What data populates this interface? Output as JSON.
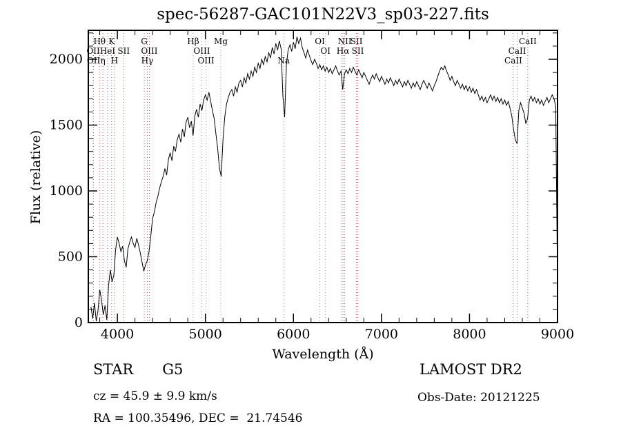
{
  "title": "spec-56287-GAC101N22V3_sp03-227.fits",
  "chart_data": {
    "type": "line",
    "title": "spec-56287-GAC101N22V3_sp03-227.fits",
    "xlabel": "Wavelength (Å)",
    "ylabel": "Flux (relative)",
    "xlim": [
      3670,
      9000
    ],
    "ylim": [
      0,
      2220
    ],
    "x_ticks": [
      4000,
      5000,
      6000,
      7000,
      8000,
      9000
    ],
    "y_ticks": [
      0,
      500,
      1000,
      1500,
      2000
    ],
    "x_minor_step": 200,
    "y_minor_step": 100,
    "grid": false,
    "legend": "none",
    "line_color": "#000000",
    "series": [
      {
        "name": "spectrum",
        "x_start": 3700,
        "x_step": 20,
        "values": [
          120,
          30,
          150,
          10,
          90,
          250,
          170,
          60,
          130,
          20,
          280,
          400,
          310,
          360,
          550,
          650,
          600,
          540,
          580,
          470,
          420,
          560,
          610,
          650,
          600,
          570,
          640,
          590,
          530,
          460,
          390,
          440,
          470,
          540,
          660,
          790,
          840,
          910,
          960,
          1020,
          1070,
          1110,
          1170,
          1120,
          1240,
          1290,
          1230,
          1340,
          1300,
          1390,
          1430,
          1370,
          1470,
          1410,
          1520,
          1560,
          1480,
          1530,
          1420,
          1570,
          1620,
          1560,
          1660,
          1610,
          1690,
          1730,
          1690,
          1750,
          1680,
          1610,
          1550,
          1430,
          1320,
          1170,
          1110,
          1390,
          1560,
          1660,
          1710,
          1750,
          1770,
          1720,
          1790,
          1750,
          1820,
          1840,
          1790,
          1860,
          1820,
          1890,
          1850,
          1910,
          1870,
          1940,
          1900,
          1970,
          1930,
          2000,
          1960,
          2020,
          1980,
          2050,
          2010,
          2090,
          2040,
          2120,
          2070,
          2140,
          2080,
          1720,
          1560,
          1960,
          2070,
          2110,
          2060,
          2130,
          2080,
          2170,
          2120,
          2160,
          2090,
          2050,
          2010,
          2070,
          2030,
          1990,
          1960,
          2000,
          1970,
          1930,
          1960,
          1920,
          1950,
          1910,
          1940,
          1900,
          1930,
          1890,
          1920,
          1950,
          1910,
          1880,
          1910,
          1770,
          1890,
          1920,
          1890,
          1930,
          1900,
          1940,
          1910,
          1880,
          1920,
          1890,
          1860,
          1900,
          1870,
          1840,
          1810,
          1850,
          1880,
          1850,
          1890,
          1860,
          1830,
          1870,
          1840,
          1810,
          1850,
          1820,
          1860,
          1830,
          1800,
          1840,
          1810,
          1850,
          1820,
          1790,
          1830,
          1800,
          1840,
          1810,
          1780,
          1820,
          1790,
          1830,
          1800,
          1770,
          1810,
          1840,
          1810,
          1780,
          1820,
          1790,
          1760,
          1800,
          1830,
          1870,
          1910,
          1940,
          1920,
          1950,
          1910,
          1880,
          1840,
          1870,
          1830,
          1800,
          1840,
          1810,
          1780,
          1810,
          1770,
          1800,
          1760,
          1790,
          1750,
          1780,
          1740,
          1770,
          1730,
          1690,
          1720,
          1680,
          1710,
          1670,
          1700,
          1730,
          1690,
          1720,
          1680,
          1710,
          1670,
          1700,
          1660,
          1690,
          1650,
          1680,
          1630,
          1570,
          1470,
          1390,
          1360,
          1610,
          1670,
          1630,
          1590,
          1510,
          1550,
          1690,
          1720,
          1680,
          1710,
          1670,
          1700,
          1660,
          1690,
          1650,
          1680,
          1710,
          1670,
          1700,
          1730,
          1700,
          1640,
          280
        ]
      }
    ],
    "spectral_lines": [
      {
        "wavelength": 3726,
        "label": "OII",
        "row": 2,
        "color": "#cc5555"
      },
      {
        "wavelength": 3729,
        "label": "OII",
        "row": 3,
        "color": "#cc5555"
      },
      {
        "wavelength": 3798,
        "label": "Hθ",
        "row": 1,
        "color": "#cc5555"
      },
      {
        "wavelength": 3835,
        "label": "η",
        "row": 3,
        "color": "#cc5555"
      },
      {
        "wavelength": 3889,
        "label": "HeI",
        "row": 2,
        "color": "#cc5555"
      },
      {
        "wavelength": 3934,
        "label": "K",
        "row": 1,
        "color": "#cc5555"
      },
      {
        "wavelength": 3968,
        "label": "H",
        "row": 3,
        "color": "#cc5555"
      },
      {
        "wavelength": 4072,
        "label": "SII",
        "row": 2,
        "color": "#cc5555"
      },
      {
        "wavelength": 4305,
        "label": "G",
        "row": 1,
        "color": "#cc5555"
      },
      {
        "wavelength": 4340,
        "label": "Hγ",
        "row": 3,
        "color": "#cc5555"
      },
      {
        "wavelength": 4363,
        "label": "OIII",
        "row": 2,
        "color": "#cc5555"
      },
      {
        "wavelength": 4861,
        "label": "Hβ",
        "row": 1,
        "color": "#999999"
      },
      {
        "wavelength": 4959,
        "label": "OIII",
        "row": 2,
        "color": "#999999"
      },
      {
        "wavelength": 5007,
        "label": "OIII",
        "row": 3,
        "color": "#999999"
      },
      {
        "wavelength": 5175,
        "label": "Mg",
        "row": 1,
        "color": "#999999"
      },
      {
        "wavelength": 5890,
        "label": "Na",
        "row": 3,
        "color": "#999999"
      },
      {
        "wavelength": 6300,
        "label": "OI",
        "row": 1,
        "color": "#999999"
      },
      {
        "wavelength": 6364,
        "label": "OI",
        "row": 2,
        "color": "#999999"
      },
      {
        "wavelength": 6548,
        "label": "",
        "row": 0,
        "color": "#cc5555"
      },
      {
        "wavelength": 6563,
        "label": "Hα",
        "row": 2,
        "color": "#cc5555"
      },
      {
        "wavelength": 6583,
        "label": "NII",
        "row": 1,
        "color": "#cc5555"
      },
      {
        "wavelength": 6716,
        "label": "SII",
        "row": 1,
        "color": "#cc5555"
      },
      {
        "wavelength": 6731,
        "label": "SII",
        "row": 2,
        "color": "#cc5555"
      },
      {
        "wavelength": 8498,
        "label": "CaII",
        "row": 3,
        "color": "#cc5555"
      },
      {
        "wavelength": 8542,
        "label": "CaII",
        "row": 2,
        "color": "#cc5555"
      },
      {
        "wavelength": 8662,
        "label": "CaII",
        "row": 1,
        "color": "#cc5555"
      }
    ]
  },
  "annotations": {
    "class_label": "STAR",
    "subclass": "G5",
    "survey": "LAMOST DR2",
    "cz_line": "cz = 45.9 ± 9.9 km/s",
    "obs_line": "Obs-Date: 20121225",
    "radec_line": "RA = 100.35496, DEC =  21.74546"
  }
}
